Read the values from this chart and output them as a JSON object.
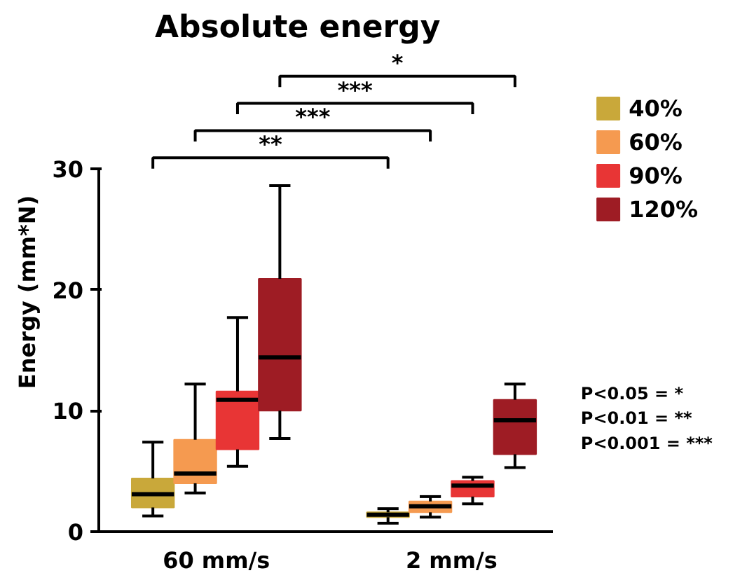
{
  "chart_data": {
    "type": "box",
    "title": "Absolute energy",
    "ylabel": "Energy (mm*N)",
    "categories": [
      "60 mm/s",
      "2 mm/s"
    ],
    "series": [
      {
        "name": "40%",
        "color": "#c9a83a",
        "boxes": [
          {
            "low": 1.3,
            "q1": 2.0,
            "median": 3.1,
            "q3": 4.4,
            "high": 7.4
          },
          {
            "low": 0.7,
            "q1": 1.2,
            "median": 1.4,
            "q3": 1.6,
            "high": 1.9
          }
        ]
      },
      {
        "name": "60%",
        "color": "#f59a50",
        "boxes": [
          {
            "low": 3.2,
            "q1": 4.0,
            "median": 4.8,
            "q3": 7.6,
            "high": 12.2
          },
          {
            "low": 1.2,
            "q1": 1.6,
            "median": 2.1,
            "q3": 2.5,
            "high": 2.9
          }
        ]
      },
      {
        "name": "90%",
        "color": "#e83535",
        "boxes": [
          {
            "low": 5.4,
            "q1": 6.8,
            "median": 10.9,
            "q3": 11.6,
            "high": 17.7
          },
          {
            "low": 2.3,
            "q1": 2.9,
            "median": 3.8,
            "q3": 4.2,
            "high": 4.5
          }
        ]
      },
      {
        "name": "120%",
        "color": "#9e1c24",
        "boxes": [
          {
            "low": 7.7,
            "q1": 10.0,
            "median": 14.4,
            "q3": 20.9,
            "high": 28.6
          },
          {
            "low": 5.3,
            "q1": 6.4,
            "median": 9.2,
            "q3": 10.9,
            "high": 12.2
          }
        ]
      }
    ],
    "ylim": [
      0,
      30
    ],
    "yticks": [
      0,
      10,
      20,
      30
    ],
    "grid": false,
    "legend": "right",
    "annotations": [
      "**",
      "***",
      "***",
      "*",
      "P<0.05   = *",
      "P<0.01   = **",
      "P<0.001 = ***"
    ]
  }
}
